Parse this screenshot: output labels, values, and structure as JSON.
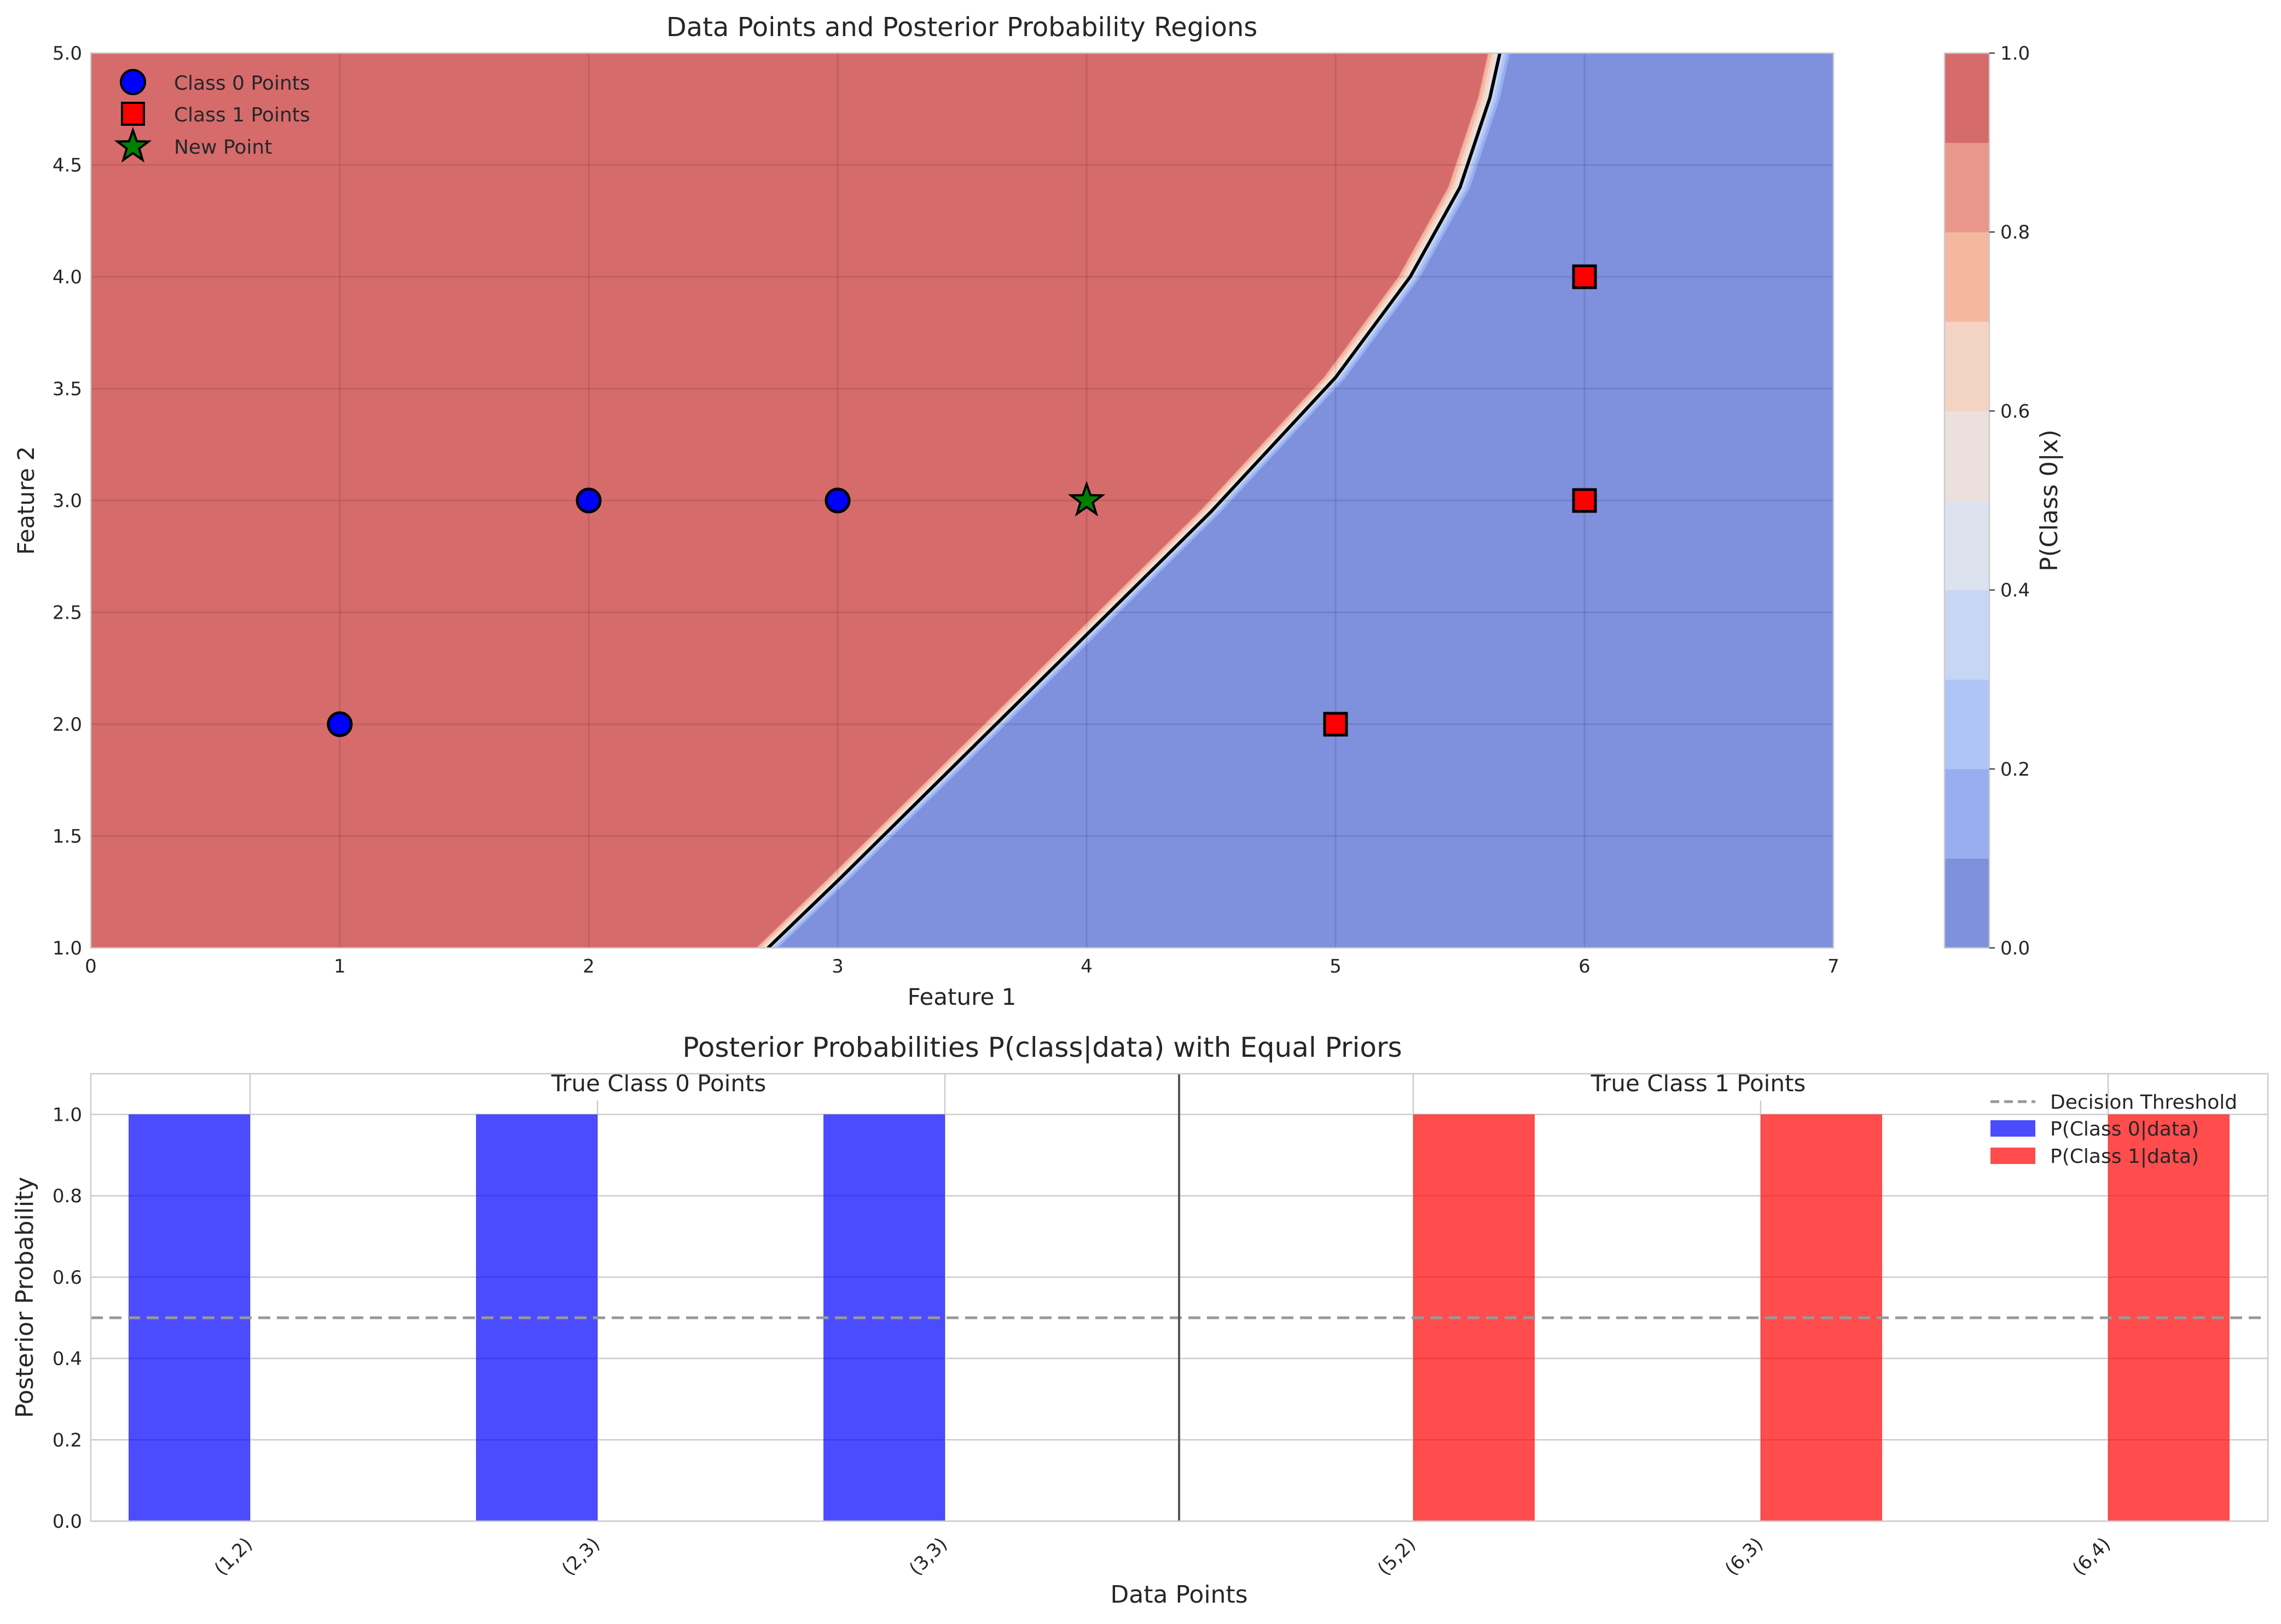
{
  "chart_data": [
    {
      "type": "scatter",
      "title": "Data Points and Posterior Probability Regions",
      "xlabel": "Feature 1",
      "ylabel": "Feature 2",
      "xlim": [
        0,
        7
      ],
      "ylim": [
        1,
        5
      ],
      "xticks": [
        0,
        1,
        2,
        3,
        4,
        5,
        6,
        7
      ],
      "yticks": [
        1.0,
        1.5,
        2.0,
        2.5,
        3.0,
        3.5,
        4.0,
        4.5,
        5.0
      ],
      "grid": true,
      "legend_position": "top-left",
      "series": [
        {
          "name": "Class 0 Points",
          "marker": "circle",
          "color": "#0000ff",
          "points": [
            [
              1,
              2
            ],
            [
              2,
              3
            ],
            [
              3,
              3
            ]
          ]
        },
        {
          "name": "Class 1 Points",
          "marker": "square",
          "color": "#ff0000",
          "points": [
            [
              5,
              2
            ],
            [
              6,
              3
            ],
            [
              6,
              4
            ]
          ]
        },
        {
          "name": "New Point",
          "marker": "star",
          "color": "#008000",
          "points": [
            [
              4,
              3
            ]
          ]
        }
      ],
      "decision_boundary": {
        "level": 0.5,
        "color": "#000000",
        "points": [
          [
            2.72,
            1.0
          ],
          [
            3.0,
            1.3
          ],
          [
            3.5,
            1.85
          ],
          [
            4.0,
            2.4
          ],
          [
            4.5,
            2.95
          ],
          [
            5.0,
            3.55
          ],
          [
            5.3,
            4.0
          ],
          [
            5.5,
            4.4
          ],
          [
            5.62,
            4.8
          ],
          [
            5.66,
            5.0
          ]
        ]
      },
      "regions": {
        "class0_color": "#d66b6c",
        "class1_color": "#7f90dd",
        "transition_colors": [
          "#e8978a",
          "#f4b8a0",
          "#f3d3c3",
          "#ebe0dc",
          "#dde3ee",
          "#c6d6f4",
          "#afc4f7",
          "#97aef0"
        ]
      },
      "colorbar": {
        "label": "P(Class 0|x)",
        "range": [
          0,
          1
        ],
        "ticks": [
          0.0,
          0.2,
          0.4,
          0.6,
          0.8,
          1.0
        ],
        "levels": [
          "#7f90dd",
          "#97aef0",
          "#afc4f7",
          "#c6d6f4",
          "#dde3ee",
          "#ebe0dc",
          "#f3d3c3",
          "#f4b8a0",
          "#e8978a",
          "#d66b6c"
        ]
      }
    },
    {
      "type": "bar",
      "title": "Posterior Probabilities P(class|data) with Equal Priors",
      "xlabel": "Data Points",
      "ylabel": "Posterior Probability",
      "ylim": [
        0,
        1.1
      ],
      "yticks": [
        0.0,
        0.2,
        0.4,
        0.6,
        0.8,
        1.0
      ],
      "grid": true,
      "legend_position": "top-right",
      "categories": [
        "(1,2)",
        "(2,3)",
        "(3,3)",
        "(5,2)",
        "(6,3)",
        "(6,4)"
      ],
      "series": [
        {
          "name": "P(Class 0|data)",
          "color": "#0000ff",
          "values": [
            1.0,
            1.0,
            1.0,
            0.0,
            0.0,
            0.0
          ]
        },
        {
          "name": "P(Class 1|data)",
          "color": "#ff0000",
          "values": [
            0.0,
            0.0,
            0.0,
            1.0,
            1.0,
            1.0
          ]
        }
      ],
      "threshold": {
        "name": "Decision Threshold",
        "value": 0.5
      },
      "group_labels": [
        "True Class 0 Points",
        "True Class 1 Points"
      ]
    }
  ]
}
